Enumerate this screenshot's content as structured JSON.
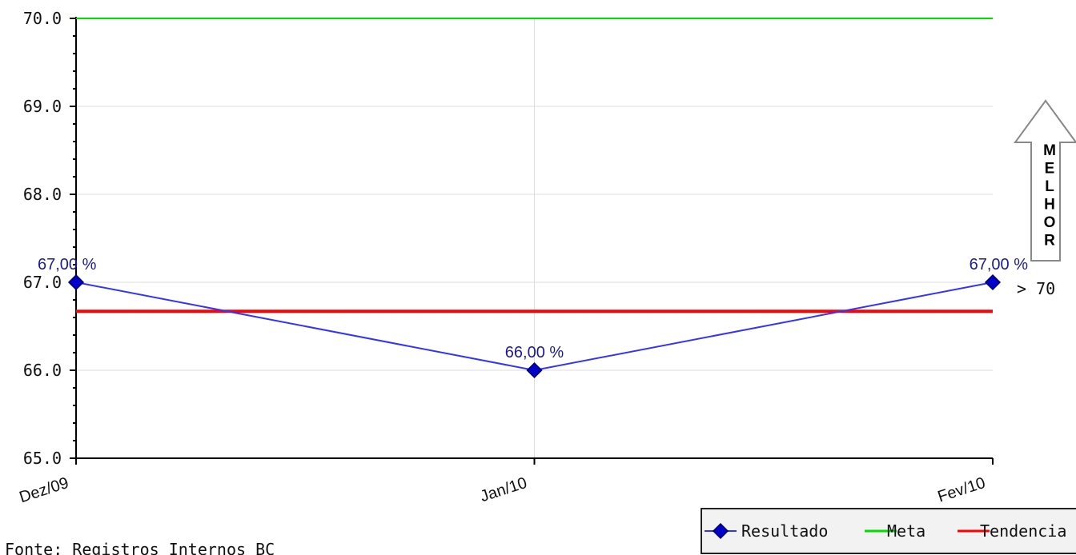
{
  "chart_data": {
    "type": "line",
    "categories": [
      "Dez/09",
      "Jan/10",
      "Fev/10"
    ],
    "series": [
      {
        "name": "Resultado",
        "values": [
          67.0,
          66.0,
          67.0
        ],
        "color": "#3333ff",
        "marker": "diamond",
        "marker_color": "#0000cc"
      },
      {
        "name": "Meta",
        "values": [
          70.0,
          70.0,
          70.0
        ],
        "color": "#00dd00"
      },
      {
        "name": "Tendencia",
        "values": [
          66.67,
          66.67,
          66.67
        ],
        "color": "#ff0000"
      }
    ],
    "data_labels": [
      "67,00 %",
      "66,00 %",
      "67,00 %"
    ],
    "y_ticks": [
      "65.0",
      "66.0",
      "67.0",
      "68.0",
      "69.0",
      "70.0"
    ],
    "ylim": [
      65.0,
      70.0
    ],
    "grid": true,
    "legend_placement": "bottom-right",
    "direction_indicator": {
      "letters": [
        "M",
        "E",
        "L",
        "H",
        "O",
        "R"
      ],
      "target_label": "> 70"
    },
    "source_note": "Fonte: Registros Internos BC"
  }
}
